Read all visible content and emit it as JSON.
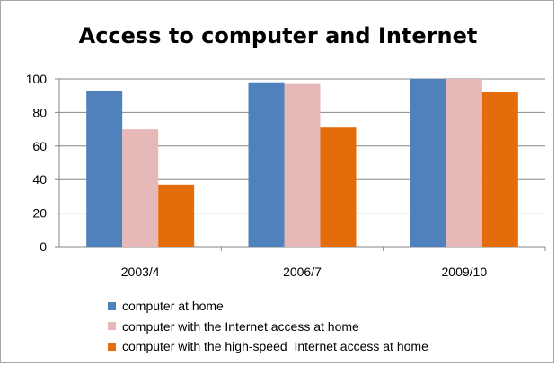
{
  "chart_data": {
    "type": "bar",
    "title": "Access to computer and Internet",
    "xlabel": "",
    "ylabel": "",
    "categories": [
      "2003/4",
      "2006/7",
      "2009/10"
    ],
    "ylim": [
      0,
      100
    ],
    "yticks": [
      0,
      20,
      40,
      60,
      80,
      100
    ],
    "grid": true,
    "legend_position": "bottom",
    "series": [
      {
        "name": "computer at home",
        "color": "#4f81bd",
        "values": [
          93,
          98,
          100
        ]
      },
      {
        "name": "computer with the Internet access at home",
        "color": "#e6b9b8",
        "values": [
          70,
          97,
          100
        ]
      },
      {
        "name": "computer with the high-speed  Internet access at home",
        "color": "#e46c0a",
        "values": [
          37,
          71,
          92
        ]
      }
    ]
  }
}
